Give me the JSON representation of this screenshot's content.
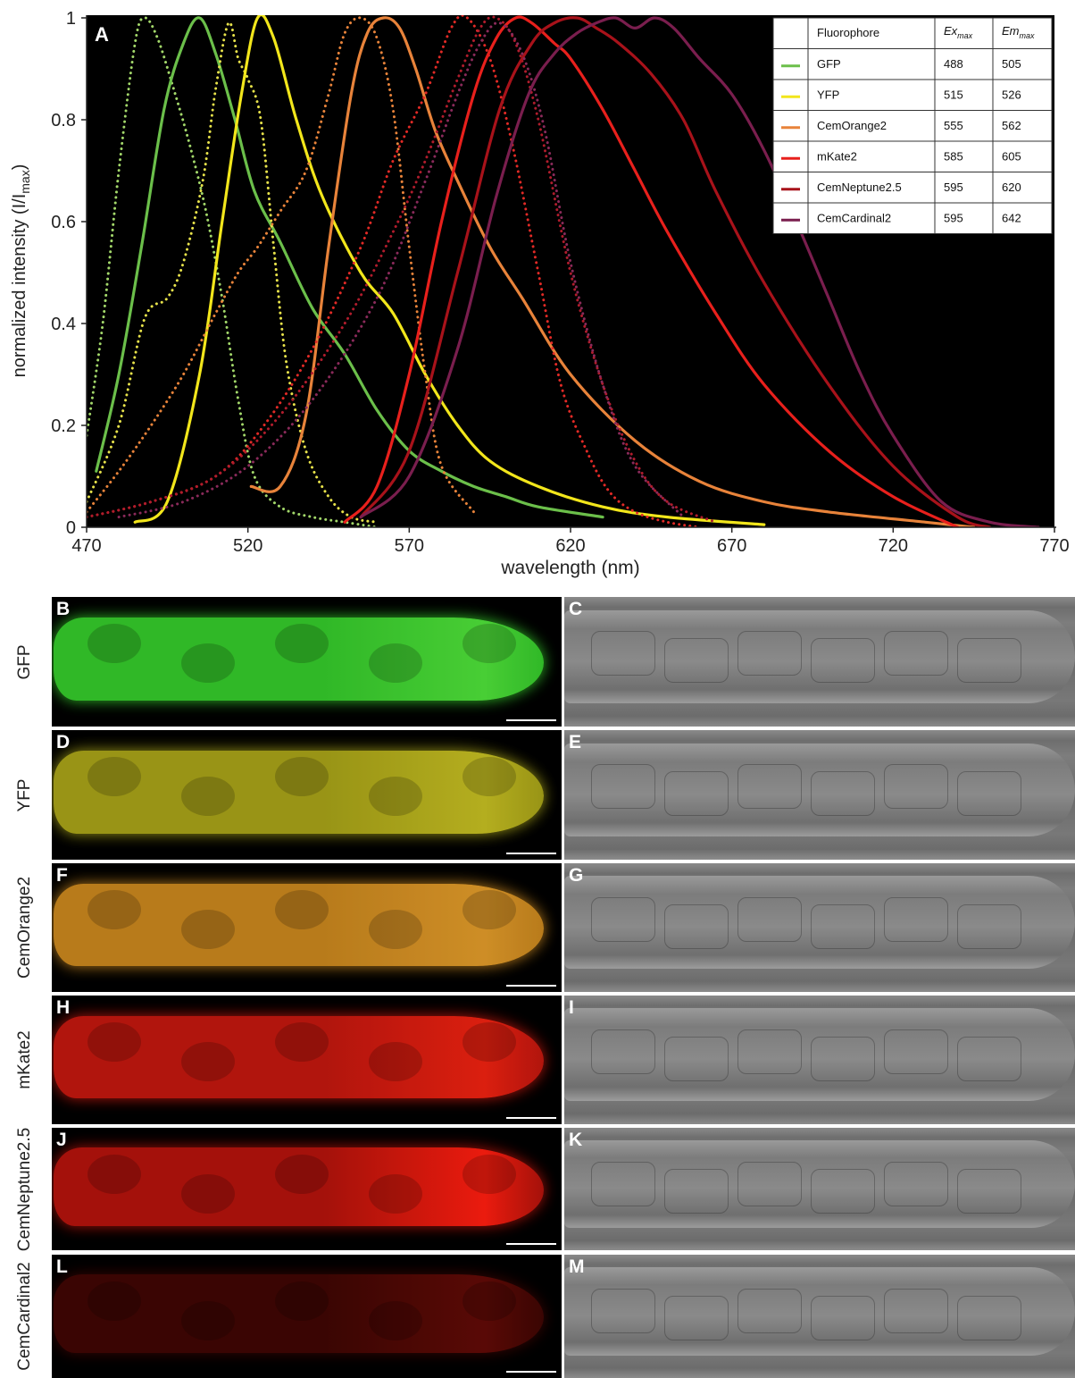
{
  "chart_data": {
    "type": "line",
    "panel_label": "A",
    "title": "",
    "xlabel": "wavelength (nm)",
    "ylabel": "normalized intensity (I/I",
    "ylabel_sub": "max",
    "ylabel_end": ")",
    "xlim": [
      470,
      770
    ],
    "ylim": [
      0,
      1
    ],
    "xticks": [
      "470",
      "520",
      "570",
      "620",
      "670",
      "720",
      "770"
    ],
    "yticks": [
      "0",
      "0.2",
      "0.4",
      "0.6",
      "0.8",
      "1"
    ],
    "grid": false,
    "legend_placement": "top-right table",
    "legend_table": {
      "headers": [
        "Fluorophore",
        "Ex",
        "Em"
      ],
      "header_sub": "max",
      "rows": [
        {
          "name": "GFP",
          "ex": "488",
          "em": "505",
          "color": "#6bbf4a"
        },
        {
          "name": "YFP",
          "ex": "515",
          "em": "526",
          "color": "#f2e61b"
        },
        {
          "name": "CemOrange2",
          "ex": "555",
          "em": "562",
          "color": "#e8833a"
        },
        {
          "name": "mKate2",
          "ex": "585",
          "em": "605",
          "color": "#e8201c"
        },
        {
          "name": "CemNeptune2.5",
          "ex": "595",
          "em": "620",
          "color": "#a8121a"
        },
        {
          "name": "CemCardinal2",
          "ex": "595",
          "em": "642",
          "color": "#7a1e4e"
        }
      ]
    },
    "series": [
      {
        "key": "GFP-ex",
        "style": "dotted",
        "color": "#a3d86a",
        "x": [
          470,
          475,
          480,
          485,
          488,
          492,
          497,
          502,
          507,
          512,
          517,
          522,
          530,
          540,
          550,
          560
        ],
        "y": [
          0.18,
          0.4,
          0.7,
          0.95,
          1.0,
          0.96,
          0.86,
          0.75,
          0.62,
          0.45,
          0.25,
          0.1,
          0.04,
          0.02,
          0.01,
          0.0
        ]
      },
      {
        "key": "GFP-em",
        "style": "solid",
        "color": "#6bbf4a",
        "x": [
          473,
          480,
          487,
          494,
          500,
          505,
          510,
          516,
          522,
          530,
          540,
          550,
          560,
          570,
          580,
          590,
          600,
          610,
          630
        ],
        "y": [
          0.11,
          0.3,
          0.55,
          0.82,
          0.95,
          1.0,
          0.93,
          0.8,
          0.66,
          0.56,
          0.43,
          0.34,
          0.23,
          0.15,
          0.11,
          0.08,
          0.06,
          0.04,
          0.02
        ]
      },
      {
        "key": "YFP-ex",
        "style": "dotted",
        "color": "#e7e24a",
        "x": [
          470,
          480,
          488,
          495,
          500,
          506,
          510,
          514,
          517,
          520,
          524,
          528,
          532,
          538,
          545,
          552,
          560
        ],
        "y": [
          0.05,
          0.2,
          0.41,
          0.45,
          0.52,
          0.68,
          0.86,
          0.99,
          0.92,
          0.88,
          0.8,
          0.55,
          0.32,
          0.15,
          0.06,
          0.02,
          0.01
        ]
      },
      {
        "key": "YFP-em",
        "style": "solid",
        "color": "#f2e61b",
        "x": [
          485,
          495,
          505,
          512,
          518,
          523,
          528,
          535,
          543,
          555,
          565,
          575,
          585,
          595,
          610,
          630,
          650,
          680
        ],
        "y": [
          0.01,
          0.05,
          0.3,
          0.6,
          0.85,
          1.0,
          0.96,
          0.8,
          0.65,
          0.5,
          0.42,
          0.3,
          0.2,
          0.13,
          0.08,
          0.04,
          0.02,
          0.005
        ]
      },
      {
        "key": "CemOrange2-ex",
        "style": "dotted",
        "color": "#e8833a",
        "x": [
          470,
          480,
          490,
          500,
          510,
          517,
          523,
          530,
          538,
          545,
          550,
          555,
          560,
          565,
          570,
          575,
          580,
          590
        ],
        "y": [
          0.03,
          0.11,
          0.2,
          0.3,
          0.42,
          0.5,
          0.55,
          0.62,
          0.7,
          0.85,
          0.97,
          1.0,
          0.96,
          0.82,
          0.55,
          0.3,
          0.12,
          0.03
        ]
      },
      {
        "key": "CemOrange2-em",
        "style": "solid",
        "color": "#e8833a",
        "x": [
          521,
          530,
          538,
          545,
          552,
          557,
          562,
          567,
          572,
          578,
          585,
          595,
          605,
          620,
          640,
          660,
          680,
          700,
          730,
          745
        ],
        "y": [
          0.08,
          0.08,
          0.22,
          0.55,
          0.85,
          0.97,
          1.0,
          0.98,
          0.9,
          0.78,
          0.68,
          0.55,
          0.45,
          0.3,
          0.17,
          0.09,
          0.05,
          0.03,
          0.01,
          0.0
        ]
      },
      {
        "key": "mKate2-ex",
        "style": "dotted",
        "color": "#e22a26",
        "x": [
          470,
          490,
          510,
          525,
          540,
          555,
          565,
          575,
          583,
          588,
          595,
          602,
          610,
          617,
          625,
          632,
          640,
          650,
          660
        ],
        "y": [
          0.02,
          0.05,
          0.1,
          0.2,
          0.35,
          0.55,
          0.72,
          0.85,
          0.98,
          1.0,
          0.92,
          0.75,
          0.5,
          0.28,
          0.15,
          0.07,
          0.03,
          0.01,
          0.0
        ]
      },
      {
        "key": "mKate2-em",
        "style": "solid",
        "color": "#e8201c",
        "x": [
          550,
          560,
          570,
          580,
          590,
          597,
          603,
          608,
          615,
          620,
          630,
          640,
          650,
          665,
          680,
          700,
          720,
          740
        ],
        "y": [
          0.01,
          0.08,
          0.3,
          0.6,
          0.85,
          0.96,
          1.0,
          0.99,
          0.95,
          0.92,
          0.82,
          0.7,
          0.58,
          0.42,
          0.28,
          0.15,
          0.06,
          0.0
        ]
      },
      {
        "key": "CemNeptune2.5-ex",
        "style": "dotted",
        "color": "#b01c2c",
        "x": [
          470,
          490,
          510,
          530,
          550,
          565,
          575,
          585,
          592,
          597,
          603,
          610,
          620,
          630,
          640,
          650,
          665
        ],
        "y": [
          0.02,
          0.05,
          0.1,
          0.22,
          0.4,
          0.58,
          0.72,
          0.88,
          0.98,
          1.0,
          0.95,
          0.8,
          0.5,
          0.28,
          0.13,
          0.05,
          0.01
        ]
      },
      {
        "key": "CemNeptune2.5-em",
        "style": "solid",
        "color": "#a8121a",
        "x": [
          555,
          570,
          585,
          598,
          608,
          615,
          622,
          628,
          635,
          645,
          655,
          665,
          680,
          700,
          720,
          740,
          750
        ],
        "y": [
          0.02,
          0.15,
          0.5,
          0.82,
          0.95,
          0.99,
          1.0,
          0.98,
          0.95,
          0.89,
          0.8,
          0.66,
          0.48,
          0.28,
          0.12,
          0.02,
          0.0
        ]
      },
      {
        "key": "CemCardinal2-ex",
        "style": "dotted",
        "color": "#8a2a5a",
        "x": [
          480,
          500,
          520,
          540,
          560,
          575,
          585,
          592,
          598,
          605,
          612,
          620,
          630,
          640,
          655
        ],
        "y": [
          0.02,
          0.05,
          0.12,
          0.25,
          0.45,
          0.68,
          0.85,
          0.95,
          0.99,
          0.93,
          0.78,
          0.52,
          0.28,
          0.12,
          0.02
        ]
      },
      {
        "key": "CemCardinal2-em",
        "style": "solid",
        "color": "#7a1e4e",
        "x": [
          555,
          570,
          585,
          597,
          607,
          615,
          622,
          628,
          634,
          640,
          646,
          652,
          660,
          670,
          680,
          690,
          700,
          710,
          720,
          735,
          750,
          765
        ],
        "y": [
          0.02,
          0.1,
          0.35,
          0.65,
          0.85,
          0.93,
          0.97,
          0.99,
          1.0,
          0.98,
          1.0,
          0.98,
          0.92,
          0.85,
          0.74,
          0.6,
          0.45,
          0.3,
          0.18,
          0.05,
          0.01,
          0.0
        ]
      }
    ]
  },
  "panels": {
    "rows": [
      {
        "label": "GFP",
        "left_letter": "B",
        "right_letter": "C",
        "tint": "#35c82b",
        "glow": "#4fe03a"
      },
      {
        "label": "YFP",
        "left_letter": "D",
        "right_letter": "E",
        "tint": "#a6a118",
        "glow": "#c4bd22"
      },
      {
        "label": "CemOrange2",
        "left_letter": "F",
        "right_letter": "G",
        "tint": "#c8861e",
        "glow": "#e09a2a"
      },
      {
        "label": "mKate2",
        "left_letter": "H",
        "right_letter": "I",
        "tint": "#c0170f",
        "glow": "#ee2211"
      },
      {
        "label": "CemNeptune2.5",
        "left_letter": "J",
        "right_letter": "K",
        "tint": "#b2130c",
        "glow": "#ff1e10"
      },
      {
        "label": "CemCardinal2",
        "left_letter": "L",
        "right_letter": "M",
        "tint": "#6a0a06",
        "glow": "#a3120b"
      }
    ]
  }
}
